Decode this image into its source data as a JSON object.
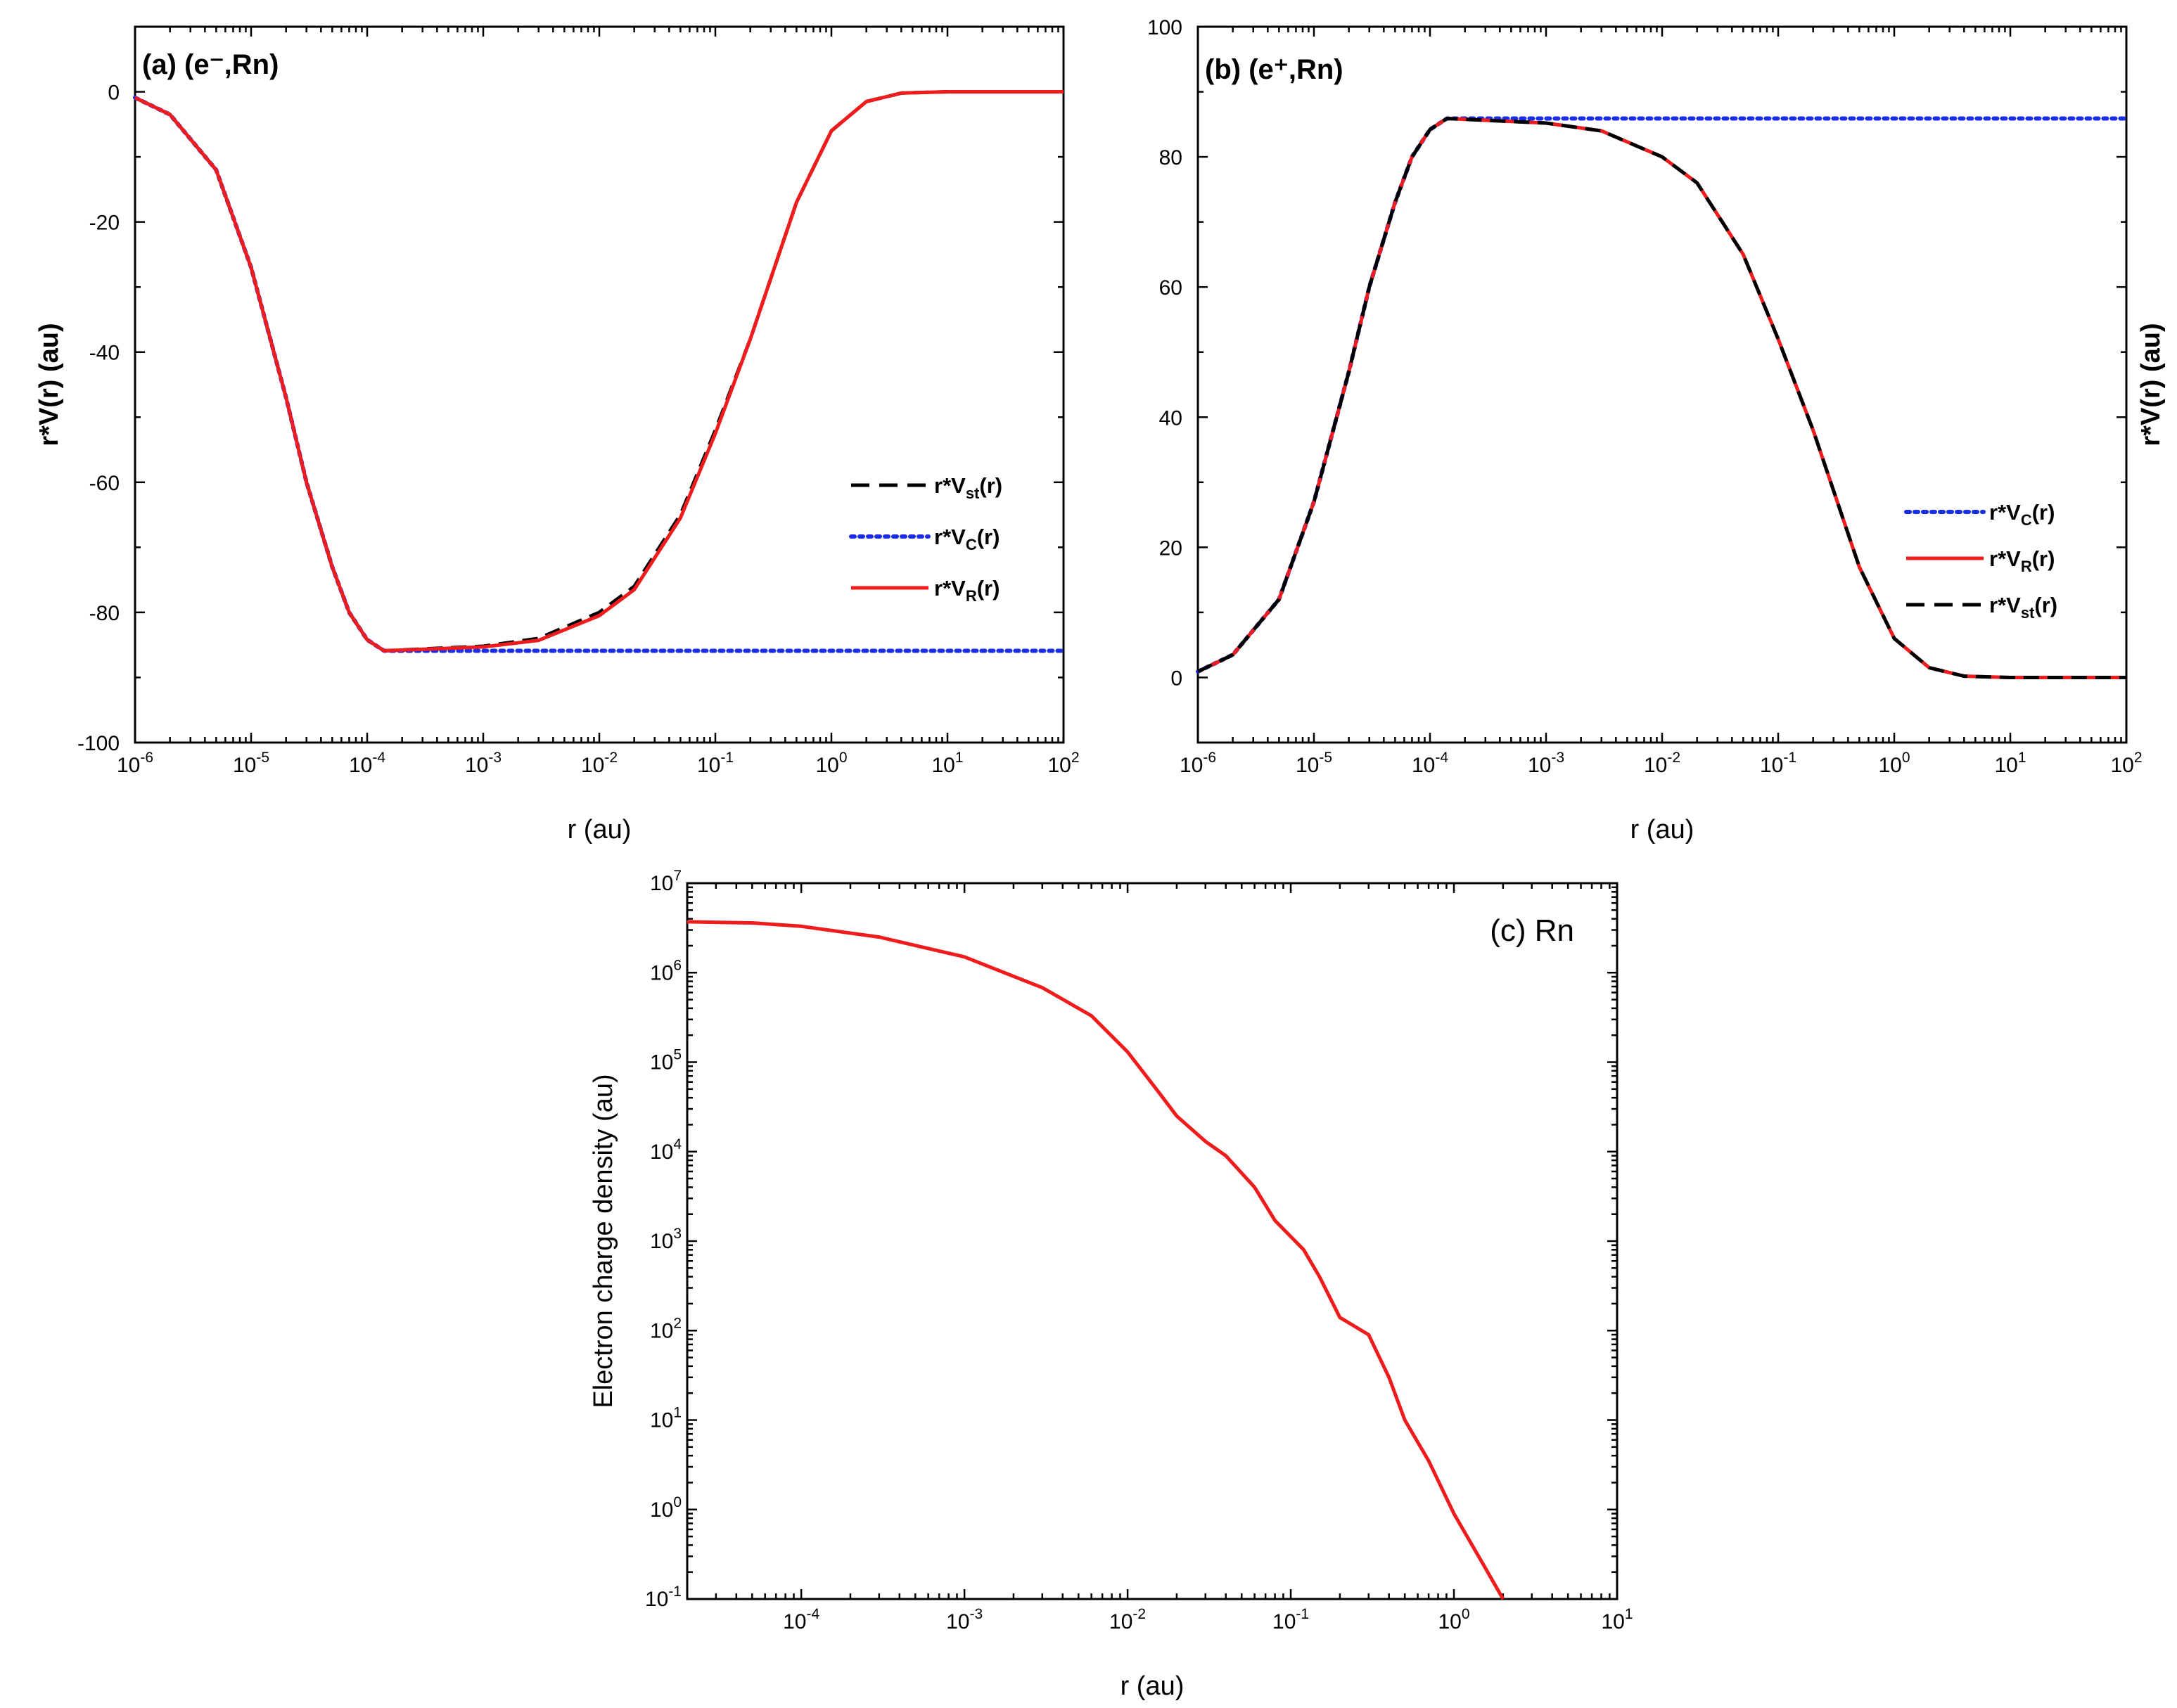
{
  "chart_data": [
    {
      "type": "line",
      "panel_label": "(a) (e⁻,Rn)",
      "xlabel": "r (au)",
      "ylabel": "r*V(r) (au)",
      "ylabel_side": "left",
      "xscale": "log",
      "xlim": [
        1e-06,
        100
      ],
      "ylim": [
        -100,
        10
      ],
      "x_tick_labels": [
        "10-6",
        "10-5",
        "10-4",
        "10-3",
        "10-2",
        "10-1",
        "100",
        "101",
        "102"
      ],
      "y_ticks": [
        0,
        -20,
        -40,
        -60,
        -80,
        -100
      ],
      "legend_position": "right-middle",
      "colors": {
        "r*V_st": "#000000",
        "r*V_C": "#1a2ee6",
        "r*V_R": "#ee1c1c"
      },
      "series": [
        {
          "name": "r*Vst(r)",
          "label_main": "r*V",
          "label_sub": "st",
          "label_tail": "(r)",
          "style": "dashed",
          "points": [
            [
              1e-06,
              -0.9
            ],
            [
              2e-06,
              -3.5
            ],
            [
              5e-06,
              -12
            ],
            [
              1e-05,
              -27
            ],
            [
              2e-05,
              -47
            ],
            [
              3e-05,
              -60
            ],
            [
              5e-05,
              -73
            ],
            [
              7e-05,
              -80
            ],
            [
              0.0001,
              -84.2
            ],
            [
              0.00014,
              -85.9
            ],
            [
              0.001,
              -85.2
            ],
            [
              0.003,
              -84.0
            ],
            [
              0.01,
              -80.0
            ],
            [
              0.02,
              -76.0
            ],
            [
              0.05,
              -65.0
            ],
            [
              0.1,
              -52.0
            ],
            [
              0.2,
              -38.0
            ],
            [
              0.5,
              -17.0
            ],
            [
              1,
              -6.0
            ],
            [
              2,
              -1.5
            ],
            [
              4,
              -0.2
            ],
            [
              10,
              0
            ],
            [
              100,
              0
            ]
          ]
        },
        {
          "name": "r*VC(r)",
          "label_main": "r*V",
          "label_sub": "C",
          "label_tail": "(r)",
          "style": "dotted",
          "points": [
            [
              1e-06,
              -0.9
            ],
            [
              2e-06,
              -3.5
            ],
            [
              5e-06,
              -12
            ],
            [
              1e-05,
              -27
            ],
            [
              2e-05,
              -47
            ],
            [
              3e-05,
              -60
            ],
            [
              5e-05,
              -73
            ],
            [
              7e-05,
              -80
            ],
            [
              0.0001,
              -84.2
            ],
            [
              0.00014,
              -85.9
            ],
            [
              100,
              -85.9
            ]
          ]
        },
        {
          "name": "r*VR(r)",
          "label_main": "r*V",
          "label_sub": "R",
          "label_tail": "(r)",
          "style": "solid",
          "points": [
            [
              1e-06,
              -0.9
            ],
            [
              2e-06,
              -3.5
            ],
            [
              5e-06,
              -12
            ],
            [
              1e-05,
              -27
            ],
            [
              2e-05,
              -47
            ],
            [
              3e-05,
              -60
            ],
            [
              5e-05,
              -73
            ],
            [
              7e-05,
              -80
            ],
            [
              0.0001,
              -84.2
            ],
            [
              0.00014,
              -85.9
            ],
            [
              0.001,
              -85.3
            ],
            [
              0.003,
              -84.3
            ],
            [
              0.01,
              -80.5
            ],
            [
              0.02,
              -76.5
            ],
            [
              0.05,
              -65.5
            ],
            [
              0.1,
              -52.5
            ],
            [
              0.2,
              -38.0
            ],
            [
              0.5,
              -17.0
            ],
            [
              1,
              -6.0
            ],
            [
              2,
              -1.5
            ],
            [
              4,
              -0.2
            ],
            [
              10,
              0
            ],
            [
              100,
              0
            ]
          ]
        }
      ]
    },
    {
      "type": "line",
      "panel_label": "(b) (e⁺,Rn)",
      "xlabel": "r (au)",
      "ylabel": "r*V(r) (au)",
      "ylabel_side": "right",
      "xscale": "log",
      "xlim": [
        1e-06,
        100
      ],
      "ylim": [
        -10,
        100
      ],
      "x_tick_labels": [
        "10-6",
        "10-5",
        "10-4",
        "10-3",
        "10-2",
        "10-1",
        "100",
        "101",
        "102"
      ],
      "y_ticks": [
        0,
        20,
        40,
        60,
        80,
        100
      ],
      "legend_position": "right-bottom",
      "colors": {
        "r*V_C": "#1a2ee6",
        "r*V_R": "#ee1c1c",
        "r*V_st": "#000000"
      },
      "series": [
        {
          "name": "r*VC(r)",
          "label_main": "r*V",
          "label_sub": "C",
          "label_tail": "(r)",
          "style": "dotted",
          "points": [
            [
              1e-06,
              0.9
            ],
            [
              2e-06,
              3.5
            ],
            [
              5e-06,
              12
            ],
            [
              1e-05,
              27
            ],
            [
              2e-05,
              47
            ],
            [
              3e-05,
              60
            ],
            [
              5e-05,
              73
            ],
            [
              7e-05,
              80
            ],
            [
              0.0001,
              84.2
            ],
            [
              0.00014,
              85.9
            ],
            [
              100,
              85.9
            ]
          ]
        },
        {
          "name": "r*VR(r)",
          "label_main": "r*V",
          "label_sub": "R",
          "label_tail": "(r)",
          "style": "solid",
          "points": [
            [
              1e-06,
              0.9
            ],
            [
              2e-06,
              3.5
            ],
            [
              5e-06,
              12
            ],
            [
              1e-05,
              27
            ],
            [
              2e-05,
              47
            ],
            [
              3e-05,
              60
            ],
            [
              5e-05,
              73
            ],
            [
              7e-05,
              80
            ],
            [
              0.0001,
              84.2
            ],
            [
              0.00014,
              85.9
            ],
            [
              0.001,
              85.2
            ],
            [
              0.003,
              84.0
            ],
            [
              0.01,
              80.0
            ],
            [
              0.02,
              76.0
            ],
            [
              0.05,
              65.0
            ],
            [
              0.1,
              52.0
            ],
            [
              0.2,
              38.0
            ],
            [
              0.5,
              17.0
            ],
            [
              1,
              6.0
            ],
            [
              2,
              1.5
            ],
            [
              4,
              0.2
            ],
            [
              10,
              0
            ],
            [
              100,
              0
            ]
          ]
        },
        {
          "name": "r*Vst(r)",
          "label_main": "r*V",
          "label_sub": "st",
          "label_tail": "(r)",
          "style": "dashed",
          "points": [
            [
              1e-06,
              0.9
            ],
            [
              2e-06,
              3.5
            ],
            [
              5e-06,
              12
            ],
            [
              1e-05,
              27
            ],
            [
              2e-05,
              47
            ],
            [
              3e-05,
              60
            ],
            [
              5e-05,
              73
            ],
            [
              7e-05,
              80
            ],
            [
              0.0001,
              84.2
            ],
            [
              0.00014,
              85.9
            ],
            [
              0.001,
              85.2
            ],
            [
              0.003,
              84.0
            ],
            [
              0.01,
              80.0
            ],
            [
              0.02,
              76.0
            ],
            [
              0.05,
              65.0
            ],
            [
              0.1,
              52.0
            ],
            [
              0.2,
              38.0
            ],
            [
              0.5,
              17.0
            ],
            [
              1,
              6.0
            ],
            [
              2,
              1.5
            ],
            [
              4,
              0.2
            ],
            [
              10,
              0
            ],
            [
              100,
              0
            ]
          ]
        }
      ]
    },
    {
      "type": "line",
      "panel_label": "(c) Rn",
      "xlabel": "r (au)",
      "ylabel": "Electron charge density (au)",
      "ylabel_side": "left",
      "xscale": "log",
      "yscale": "log",
      "xlim": [
        2e-05,
        10
      ],
      "ylim": [
        0.1,
        10000000.0
      ],
      "x_tick_labels": [
        "10-4",
        "10-3",
        "10-2",
        "10-1",
        "100",
        "101"
      ],
      "y_tick_labels": [
        "10-1",
        "100",
        "101",
        "102",
        "103",
        "104",
        "105",
        "106",
        "107"
      ],
      "colors": {
        "density": "#ee1c1c"
      },
      "series": [
        {
          "name": "Electron charge density",
          "style": "solid",
          "points": [
            [
              2e-05,
              3700000.0
            ],
            [
              5e-05,
              3600000.0
            ],
            [
              0.0001,
              3300000.0
            ],
            [
              0.0003,
              2500000.0
            ],
            [
              0.001,
              1500000.0
            ],
            [
              0.003,
              680000.0
            ],
            [
              0.006,
              330000.0
            ],
            [
              0.01,
              130000.0
            ],
            [
              0.015,
              50000.0
            ],
            [
              0.02,
              25000.0
            ],
            [
              0.03,
              13000.0
            ],
            [
              0.04,
              9000.0
            ],
            [
              0.06,
              4000.0
            ],
            [
              0.08,
              1700.0
            ],
            [
              0.12,
              800.0
            ],
            [
              0.15,
              400.0
            ],
            [
              0.2,
              140.0
            ],
            [
              0.3,
              90.0
            ],
            [
              0.4,
              30.0
            ],
            [
              0.5,
              10.0
            ],
            [
              0.7,
              3.5
            ],
            [
              1,
              0.9
            ],
            [
              1.5,
              0.25
            ],
            [
              2,
              0.1
            ]
          ]
        }
      ]
    }
  ]
}
